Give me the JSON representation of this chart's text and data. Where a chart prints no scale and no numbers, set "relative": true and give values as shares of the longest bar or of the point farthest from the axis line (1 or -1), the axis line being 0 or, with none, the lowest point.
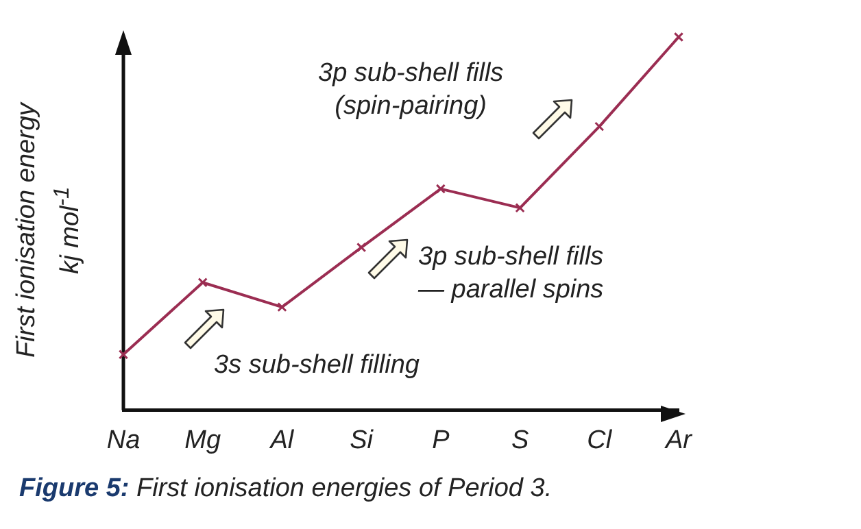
{
  "chart_data": {
    "type": "line",
    "relative": true,
    "categories": [
      "Na",
      "Mg",
      "Al",
      "Si",
      "P",
      "S",
      "Cl",
      "Ar"
    ],
    "values": [
      0.149,
      0.342,
      0.276,
      0.436,
      0.593,
      0.542,
      0.76,
      1
    ],
    "color": "#9b2d52",
    "marker": "cross",
    "line_style": "solid",
    "ylabel": "First ionisation energy\nkj mol$^{-1}$",
    "annotations": [
      "3s sub-shell filling",
      "3p sub-shell fills\n— parallel spins",
      "3p sub-shell fills\n(spin-pairing)",
      "Figure 5: First ionisation energies of Period 3."
    ]
  }
}
